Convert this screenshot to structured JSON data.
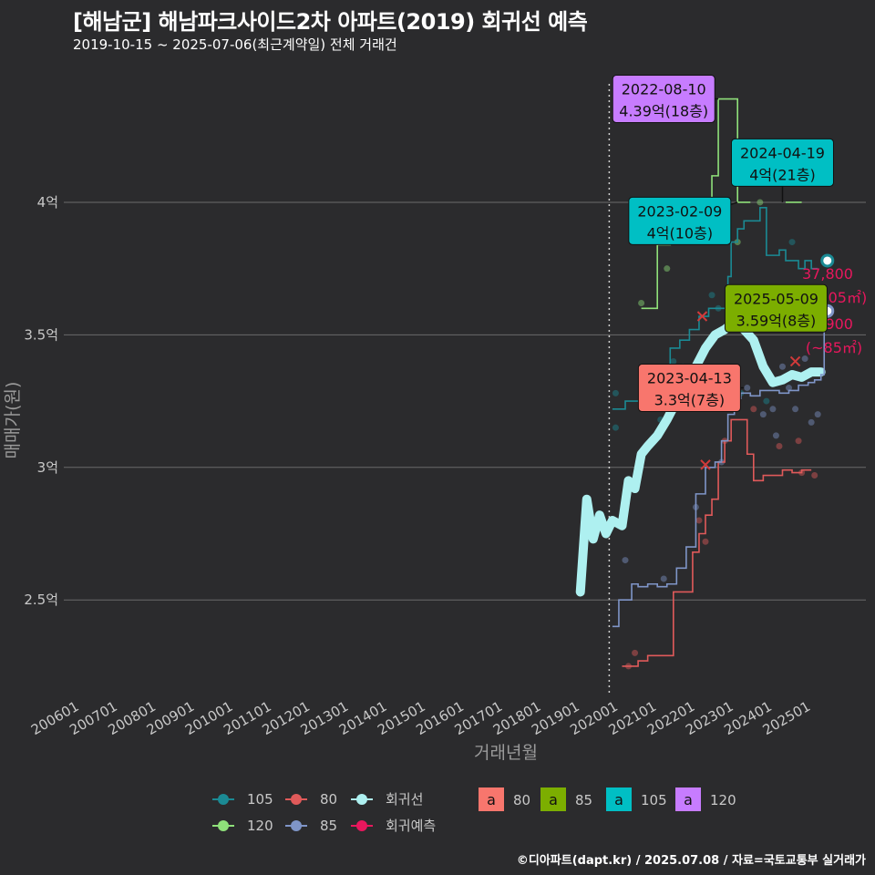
{
  "title": "[해남군] 해남파크사이드2차 아파트(2019) 회귀선 예측",
  "subtitle": "2019-10-15 ~ 2025-07-06(최근계약일) 전체 거래건",
  "footer": "©디아파트(dapt.kr) / 2025.07.08 / 자료=국토교통부 실거래가",
  "colors": {
    "background": "#2b2b2d",
    "grid": "#6b6b6b",
    "s105": "#1b8a94",
    "s80": "#e05a5a",
    "s85": "#7f95c8",
    "s120": "#8fe07a",
    "regression": "#aef0f0",
    "forecast": "#e8175d"
  },
  "chart_data": {
    "type": "line",
    "xlabel": "거래년월",
    "ylabel": "매매가(원)",
    "xlim": [
      "2005-08",
      "2026-06"
    ],
    "ylim": [
      2.15,
      4.55
    ],
    "x_ticks": [
      "200601",
      "200701",
      "200801",
      "200901",
      "201001",
      "201101",
      "201201",
      "201301",
      "201401",
      "201501",
      "201601",
      "201701",
      "201801",
      "201901",
      "202001",
      "202101",
      "202201",
      "202301",
      "202401",
      "202501"
    ],
    "y_ticks": [
      {
        "value": 2.5,
        "label": "2.5억"
      },
      {
        "value": 3.0,
        "label": "3억"
      },
      {
        "value": 3.5,
        "label": "3.5억"
      },
      {
        "value": 4.0,
        "label": "4억"
      }
    ],
    "vline": {
      "date": "2019-10"
    },
    "series": [
      {
        "name": "105",
        "key": "s105",
        "points": [
          [
            "2019-11",
            3.22
          ],
          [
            "2020-02",
            3.22
          ],
          [
            "2020-03",
            3.25
          ],
          [
            "2020-06",
            3.25
          ],
          [
            "2020-09",
            3.35
          ],
          [
            "2021-01",
            3.35
          ],
          [
            "2021-05",
            3.45
          ],
          [
            "2021-08",
            3.48
          ],
          [
            "2021-11",
            3.52
          ],
          [
            "2022-02",
            3.57
          ],
          [
            "2022-05",
            3.6
          ],
          [
            "2022-08",
            3.6
          ],
          [
            "2022-11",
            3.72
          ],
          [
            "2022-12",
            3.85
          ],
          [
            "2023-02",
            3.9
          ],
          [
            "2023-04",
            3.93
          ],
          [
            "2023-07",
            3.93
          ],
          [
            "2023-09",
            3.98
          ],
          [
            "2023-11",
            3.8
          ],
          [
            "2024-02",
            3.8
          ],
          [
            "2024-03",
            3.82
          ],
          [
            "2024-05",
            3.78
          ],
          [
            "2024-07",
            3.78
          ],
          [
            "2024-09",
            3.75
          ],
          [
            "2024-11",
            3.78
          ],
          [
            "2025-01",
            3.75
          ],
          [
            "2025-03",
            3.75
          ]
        ]
      },
      {
        "name": "80",
        "key": "s80",
        "points": [
          [
            "2020-02",
            2.25
          ],
          [
            "2020-05",
            2.25
          ],
          [
            "2020-07",
            2.27
          ],
          [
            "2020-10",
            2.29
          ],
          [
            "2021-06",
            2.53
          ],
          [
            "2021-09",
            2.53
          ],
          [
            "2021-12",
            2.68
          ],
          [
            "2022-02",
            2.75
          ],
          [
            "2022-04",
            2.82
          ],
          [
            "2022-06",
            2.88
          ],
          [
            "2022-08",
            3.02
          ],
          [
            "2022-10",
            3.1
          ],
          [
            "2022-12",
            3.18
          ],
          [
            "2023-03",
            3.18
          ],
          [
            "2023-05",
            3.05
          ],
          [
            "2023-07",
            2.95
          ],
          [
            "2023-10",
            2.97
          ],
          [
            "2024-01",
            2.97
          ],
          [
            "2024-04",
            2.99
          ],
          [
            "2024-07",
            2.98
          ],
          [
            "2024-10",
            2.99
          ],
          [
            "2025-01",
            2.99
          ]
        ]
      },
      {
        "name": "85",
        "key": "s85",
        "points": [
          [
            "2019-11",
            2.4
          ],
          [
            "2020-01",
            2.5
          ],
          [
            "2020-03",
            2.5
          ],
          [
            "2020-05",
            2.56
          ],
          [
            "2020-07",
            2.55
          ],
          [
            "2020-10",
            2.56
          ],
          [
            "2021-01",
            2.55
          ],
          [
            "2021-04",
            2.56
          ],
          [
            "2021-07",
            2.62
          ],
          [
            "2021-10",
            2.7
          ],
          [
            "2022-01",
            2.9
          ],
          [
            "2022-04",
            3.0
          ],
          [
            "2022-07",
            3.02
          ],
          [
            "2022-09",
            3.1
          ],
          [
            "2022-11",
            3.2
          ],
          [
            "2023-01",
            3.26
          ],
          [
            "2023-03",
            3.28
          ],
          [
            "2023-06",
            3.27
          ],
          [
            "2023-09",
            3.29
          ],
          [
            "2023-12",
            3.29
          ],
          [
            "2024-03",
            3.28
          ],
          [
            "2024-06",
            3.29
          ],
          [
            "2024-09",
            3.31
          ],
          [
            "2024-12",
            3.32
          ],
          [
            "2025-02",
            3.33
          ],
          [
            "2025-04",
            3.35
          ],
          [
            "2025-05",
            3.59
          ]
        ]
      },
      {
        "name": "120",
        "key": "s120",
        "points": [
          [
            "2020-08",
            3.6
          ],
          [
            "2020-11",
            3.6
          ],
          [
            "2021-01",
            3.84
          ],
          [
            "2021-05",
            3.85
          ],
          [
            "2021-09",
            3.86
          ],
          [
            "2022-01",
            3.87
          ],
          [
            "2022-03",
            3.88
          ],
          [
            "2022-06",
            4.1
          ],
          [
            "2022-08",
            4.39
          ],
          [
            "2022-10",
            4.39
          ],
          [
            "2023-01",
            4.39
          ],
          [
            "2023-02",
            4.0
          ],
          [
            "2023-06",
            4.0
          ]
        ]
      },
      {
        "name": "120",
        "key": "s120b",
        "points": [
          [
            "2024-05",
            4.0
          ],
          [
            "2024-10",
            4.0
          ]
        ]
      },
      {
        "name": "회귀선",
        "key": "regression",
        "points": [
          [
            "2019-01",
            2.53
          ],
          [
            "2019-03",
            2.88
          ],
          [
            "2019-05",
            2.73
          ],
          [
            "2019-07",
            2.82
          ],
          [
            "2019-09",
            2.75
          ],
          [
            "2019-11",
            2.8
          ],
          [
            "2020-02",
            2.78
          ],
          [
            "2020-04",
            2.95
          ],
          [
            "2020-06",
            2.92
          ],
          [
            "2020-08",
            3.05
          ],
          [
            "2020-10",
            3.08
          ],
          [
            "2021-01",
            3.12
          ],
          [
            "2021-04",
            3.18
          ],
          [
            "2021-07",
            3.25
          ],
          [
            "2021-10",
            3.32
          ],
          [
            "2022-01",
            3.38
          ],
          [
            "2022-04",
            3.45
          ],
          [
            "2022-07",
            3.5
          ],
          [
            "2022-10",
            3.52
          ],
          [
            "2023-01",
            3.55
          ],
          [
            "2023-04",
            3.52
          ],
          [
            "2023-07",
            3.48
          ],
          [
            "2023-10",
            3.38
          ],
          [
            "2024-01",
            3.32
          ],
          [
            "2024-04",
            3.33
          ],
          [
            "2024-07",
            3.35
          ],
          [
            "2024-10",
            3.34
          ],
          [
            "2025-01",
            3.36
          ],
          [
            "2025-04",
            3.36
          ]
        ]
      }
    ],
    "forecast_points": [
      {
        "series": "105",
        "date": "2025-06",
        "value": 3.78,
        "label": "37,800",
        "sub": "(~105㎡)"
      },
      {
        "series": "85",
        "date": "2025-06",
        "value": 3.59,
        "label": "35,900",
        "sub": "(~85㎡)"
      }
    ],
    "scatter": [
      [
        "2019-12",
        3.28,
        "s105"
      ],
      [
        "2019-12",
        3.15,
        "s105"
      ],
      [
        "2020-03",
        2.65,
        "s85"
      ],
      [
        "2020-04",
        2.25,
        "s80"
      ],
      [
        "2020-06",
        2.3,
        "s80"
      ],
      [
        "2020-08",
        3.62,
        "s120"
      ],
      [
        "2021-01",
        3.3,
        "s105"
      ],
      [
        "2021-02",
        3.18,
        "s105"
      ],
      [
        "2021-03",
        2.58,
        "s85"
      ],
      [
        "2021-04",
        3.75,
        "s120"
      ],
      [
        "2021-06",
        3.4,
        "s105"
      ],
      [
        "2021-09",
        3.38,
        "s105"
      ],
      [
        "2022-01",
        2.85,
        "s85"
      ],
      [
        "2022-02",
        2.8,
        "s80"
      ],
      [
        "2022-04",
        2.72,
        "s80"
      ],
      [
        "2022-06",
        3.65,
        "s105"
      ],
      [
        "2022-08",
        3.6,
        "s105"
      ],
      [
        "2022-09",
        3.02,
        "s85"
      ],
      [
        "2022-10",
        3.1,
        "s80"
      ],
      [
        "2023-02",
        3.85,
        "s120"
      ],
      [
        "2023-03",
        3.28,
        "s105"
      ],
      [
        "2023-05",
        3.3,
        "s85"
      ],
      [
        "2023-07",
        3.22,
        "s80"
      ],
      [
        "2023-09",
        4.0,
        "s120"
      ],
      [
        "2023-10",
        3.2,
        "s85"
      ],
      [
        "2023-11",
        3.25,
        "s105"
      ],
      [
        "2024-01",
        3.22,
        "s85"
      ],
      [
        "2024-02",
        3.12,
        "s85"
      ],
      [
        "2024-03",
        3.08,
        "s80"
      ],
      [
        "2024-04",
        3.38,
        "s85"
      ],
      [
        "2024-06",
        3.3,
        "s85"
      ],
      [
        "2024-07",
        3.85,
        "s105"
      ],
      [
        "2024-08",
        3.22,
        "s85"
      ],
      [
        "2024-09",
        3.1,
        "s80"
      ],
      [
        "2024-10",
        2.98,
        "s80"
      ],
      [
        "2024-11",
        3.41,
        "s85"
      ],
      [
        "2025-01",
        3.17,
        "s85"
      ],
      [
        "2025-02",
        2.97,
        "s80"
      ],
      [
        "2025-03",
        3.2,
        "s85"
      ]
    ],
    "x_markers": [
      [
        "2022-03",
        3.57
      ],
      [
        "2022-04",
        3.01
      ],
      [
        "2024-08",
        3.4
      ]
    ],
    "annotations": [
      {
        "line1": "2022-08-10",
        "line2": "4.39억(18층)",
        "color": "#c77cff",
        "date": "2022-08",
        "value": 4.39,
        "box_date": "2021-03",
        "box_value": 4.39
      },
      {
        "line1": "2024-04-19",
        "line2": "4억(21층)",
        "color": "#00bfc4",
        "date": "2024-04",
        "value": 4.0,
        "box_date": "2024-04",
        "box_value": 4.15
      },
      {
        "line1": "2023-02-09",
        "line2": "4억(10층)",
        "color": "#00bfc4",
        "date": "2023-02",
        "value": 4.0,
        "box_date": "2021-08",
        "box_value": 3.93
      },
      {
        "line1": "2025-05-09",
        "line2": "3.59억(8층)",
        "color": "#7cae00",
        "date": "2025-05",
        "value": 3.59,
        "box_date": "2024-02",
        "box_value": 3.6
      },
      {
        "line1": "2023-04-13",
        "line2": "3.3억(7층)",
        "color": "#f8766d",
        "date": "2023-04",
        "value": 3.3,
        "box_date": "2021-11",
        "box_value": 3.3
      }
    ],
    "legend_lines": [
      {
        "label": "105",
        "key": "s105"
      },
      {
        "label": "80",
        "key": "s80"
      },
      {
        "label": "회귀선",
        "key": "regression"
      },
      {
        "label": "120",
        "key": "s120"
      },
      {
        "label": "85",
        "key": "s85"
      },
      {
        "label": "회귀예측",
        "key": "forecast"
      }
    ],
    "legend_boxes": [
      {
        "label": "80",
        "color": "#f8766d",
        "glyph": "a"
      },
      {
        "label": "85",
        "color": "#7cae00",
        "glyph": "a"
      },
      {
        "label": "105",
        "color": "#00bfc4",
        "glyph": "a"
      },
      {
        "label": "120",
        "color": "#c77cff",
        "glyph": "a"
      }
    ]
  }
}
